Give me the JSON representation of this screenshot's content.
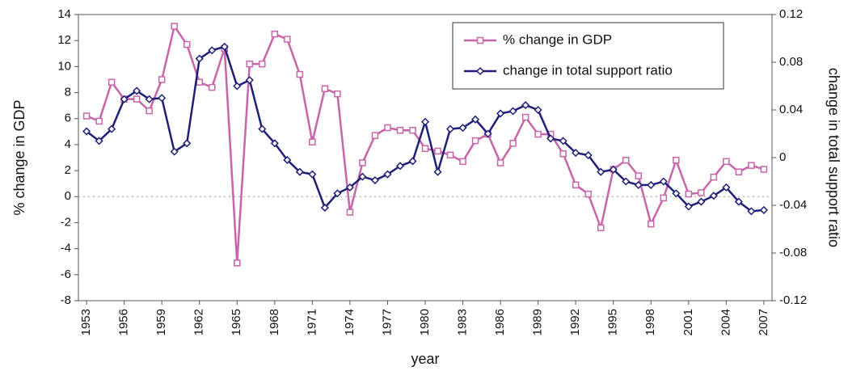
{
  "chart_data": {
    "type": "line",
    "x_label": "year",
    "y_label": "% change in GDP",
    "y2_label": "change in total support ratio",
    "x": [
      1953,
      1954,
      1955,
      1956,
      1957,
      1958,
      1959,
      1960,
      1961,
      1962,
      1963,
      1964,
      1965,
      1966,
      1967,
      1968,
      1969,
      1970,
      1971,
      1972,
      1973,
      1974,
      1975,
      1976,
      1977,
      1978,
      1979,
      1980,
      1981,
      1982,
      1983,
      1984,
      1985,
      1986,
      1987,
      1988,
      1989,
      1990,
      1991,
      1992,
      1993,
      1994,
      1995,
      1996,
      1997,
      1998,
      1999,
      2000,
      2001,
      2002,
      2003,
      2004,
      2005,
      2006,
      2007
    ],
    "xlim": [
      1952.35,
      2007.65
    ],
    "xticks": [
      1953,
      1956,
      1959,
      1962,
      1965,
      1968,
      1971,
      1974,
      1977,
      1980,
      1983,
      1986,
      1989,
      1992,
      1995,
      1998,
      2001,
      2004,
      2007
    ],
    "ylim": [
      -8,
      14
    ],
    "yticks": [
      -8,
      -6,
      -4,
      -2,
      0,
      2,
      4,
      6,
      8,
      10,
      12,
      14
    ],
    "y2lim": [
      -0.12,
      0.12
    ],
    "y2ticks": [
      -0.12,
      -0.08,
      -0.04,
      0,
      0.04,
      0.08,
      0.12
    ],
    "legend_position": "upper right",
    "series": [
      {
        "name": "% change in GDP",
        "color": "#c864a8",
        "marker": "square",
        "values": [
          6.2,
          5.8,
          8.8,
          7.5,
          7.5,
          6.6,
          9.0,
          13.1,
          11.7,
          8.8,
          8.4,
          11.4,
          -5.1,
          10.2,
          10.2,
          12.5,
          12.1,
          9.4,
          4.2,
          8.3,
          7.9,
          -1.2,
          2.6,
          4.7,
          5.3,
          5.1,
          5.1,
          3.7,
          3.5,
          3.2,
          2.7,
          4.3,
          4.8,
          2.6,
          4.1,
          6.1,
          4.8,
          4.8,
          3.3,
          0.9,
          0.2,
          -2.4,
          2.1,
          2.8,
          1.6,
          -2.1,
          -0.1,
          2.8,
          0.2,
          0.3,
          1.5,
          2.7,
          1.9,
          2.4,
          2.1
        ]
      },
      {
        "name": "change in total support ratio",
        "color": "#1f1f7a",
        "marker": "diamond",
        "axis": "y2",
        "values": [
          0.022,
          0.014,
          0.024,
          0.049,
          0.056,
          0.049,
          0.05,
          0.005,
          0.012,
          0.083,
          0.09,
          0.093,
          0.06,
          0.065,
          0.024,
          0.012,
          -0.002,
          -0.012,
          -0.014,
          -0.042,
          -0.03,
          -0.025,
          -0.016,
          -0.019,
          -0.014,
          -0.007,
          -0.003,
          0.03,
          -0.012,
          0.024,
          0.025,
          0.032,
          0.02,
          0.037,
          0.039,
          0.044,
          0.04,
          0.016,
          0.014,
          0.004,
          0.002,
          -0.012,
          -0.01,
          -0.02,
          -0.023,
          -0.023,
          -0.02,
          -0.03,
          -0.041,
          -0.037,
          -0.032,
          -0.025,
          -0.037,
          -0.045,
          -0.044
        ]
      }
    ]
  }
}
